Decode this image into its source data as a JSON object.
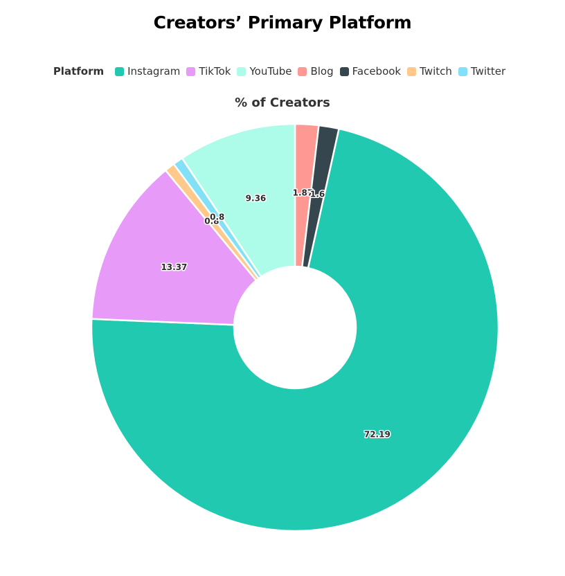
{
  "title": "Creators’ Primary Platform",
  "legend": {
    "title": "Platform",
    "items": [
      {
        "label": "Instagram",
        "color": "#21c9b0"
      },
      {
        "label": "TikTok",
        "color": "#e79af7"
      },
      {
        "label": "YouTube",
        "color": "#adfce9"
      },
      {
        "label": "Blog",
        "color": "#fd9893"
      },
      {
        "label": "Facebook",
        "color": "#36464e"
      },
      {
        "label": "Twitch",
        "color": "#fec98a"
      },
      {
        "label": "Twitter",
        "color": "#82e0f7"
      }
    ]
  },
  "chart_data": {
    "type": "pie",
    "style": "donut",
    "title": "% of Creators",
    "categories": [
      "Blog",
      "Facebook",
      "Instagram",
      "TikTok",
      "Twitch",
      "Twitter",
      "YouTube"
    ],
    "values": [
      1.87,
      1.6,
      72.19,
      13.37,
      0.8,
      0.8,
      9.36
    ],
    "data_labels": [
      "1.87",
      "1.6",
      "72.19",
      "13.37",
      "0.8",
      "0.8",
      "9.36"
    ],
    "colors": [
      "#fd9893",
      "#36464e",
      "#21c9b0",
      "#e79af7",
      "#fec98a",
      "#82e0f7",
      "#adfce9"
    ],
    "start": "top",
    "direction": "clockwise",
    "legend_position": "top"
  }
}
